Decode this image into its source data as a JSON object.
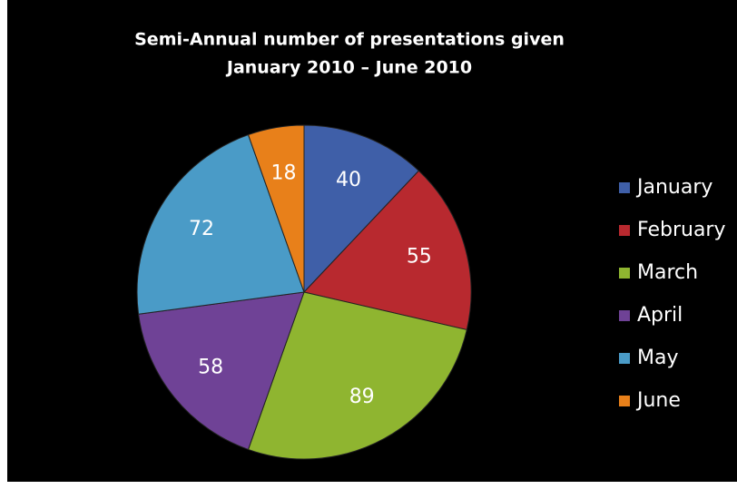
{
  "chart_data": {
    "type": "pie",
    "title": "Semi-Annual number of presentations given",
    "subtitle": "January 2010 – June 2010",
    "categories": [
      "January",
      "February",
      "March",
      "April",
      "May",
      "June"
    ],
    "values": [
      40,
      55,
      89,
      58,
      72,
      18
    ],
    "colors": [
      "#3f5fa8",
      "#b8292f",
      "#8fb530",
      "#6f4296",
      "#4a9bc7",
      "#e8801a"
    ],
    "legend": "right"
  }
}
